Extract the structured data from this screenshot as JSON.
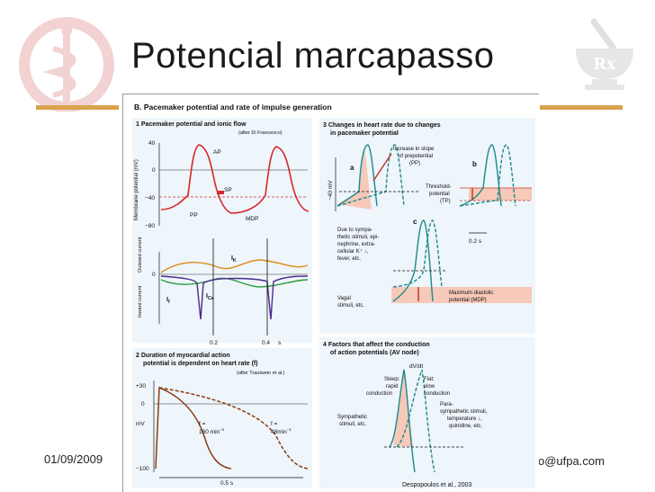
{
  "slide": {
    "title": "Potencial marcapasso",
    "date": "01/09/2009",
    "email_fragment": "o@ufpa.com",
    "logo_right_text": "Rx"
  },
  "figure": {
    "header": "B. Pacemaker potential and rate of impulse generation",
    "credit": "Despopoulos et al., 2003",
    "panel1": {
      "title": "1 Pacemaker potential and ionic flow",
      "source": "(after Di Francesco)",
      "ylabel": "Membrane potential (mV)",
      "ticks": [
        "40",
        "0",
        "−40",
        "−80"
      ],
      "labels": {
        "ap": "AP",
        "sp": "SP",
        "pp": "PP",
        "mdp": "MDP"
      },
      "current_label_outward": "Outward current",
      "current_label_inward": "Inward current",
      "ik": "I",
      "ik_sub": "K",
      "if": "I",
      "if_sub": "f",
      "ica": "I",
      "ica_sub": "Ca",
      "time_ticks": [
        "0.2",
        "0.4"
      ],
      "time_unit": "s"
    },
    "panel2": {
      "title": "2 Duration of myocardial action potential is dependent on heart rate (f)",
      "title_line1": "2 Duration of myocardial action",
      "title_line2": "potential is dependent on heart rate (f)",
      "source": "(after Trautwein et al.)",
      "ticks": [
        "+30",
        "0",
        "−100"
      ],
      "unit": "mV",
      "f1_label": "f =",
      "f1_value": "160",
      "f1_unit": "min",
      "f2_label": "f =",
      "f2_value": "48",
      "f2_unit": "min",
      "exp": "−1",
      "scale": "0.5 s"
    },
    "panel3": {
      "title_line1": "3 Changes in heart rate due to changes",
      "title_line2": "in pacemaker potential",
      "label_a": "a",
      "label_b": "b",
      "label_c": "c",
      "ylabel": "−40 mV",
      "increase_line1": "Increase in slope",
      "increase_line2": "of prepotential",
      "increase_line3": "(PP)",
      "threshold_line1": "Threshold-",
      "threshold_line2": "potential",
      "threshold_line3": "(TP)",
      "scale": "0.2 s",
      "sympa_line1": "Due to sympa-",
      "sympa_line2": "thetic stimuli, epi-",
      "sympa_line3": "nephrine, extra-",
      "sympa_line4": "cellular K⁺ ↓,",
      "sympa_line5": "fever, etc.",
      "vagal_line1": "Vagal",
      "vagal_line2": "stimuli, etc.",
      "mdp_line1": "Maximum diastolic",
      "mdp_line2": "potential (MDP)"
    },
    "panel4": {
      "title_line1": "4 Factors that affect the conduction",
      "title_line2": "of action potentials (AV node)",
      "dvdt": "dV/dt",
      "steep_line1": "Steep:",
      "steep_line2": "rapid",
      "steep_line3": "conduction",
      "flat_line1": "Flat:",
      "flat_line2": "slow",
      "flat_line3": "conduction",
      "symp_line1": "Sympathetic",
      "symp_line2": "stimuli, etc.",
      "para_line1": "Para-",
      "para_line2": "sympathetic stimuli,",
      "para_line3": "temperature ↓,",
      "para_line4": "quinidine, etc."
    }
  }
}
